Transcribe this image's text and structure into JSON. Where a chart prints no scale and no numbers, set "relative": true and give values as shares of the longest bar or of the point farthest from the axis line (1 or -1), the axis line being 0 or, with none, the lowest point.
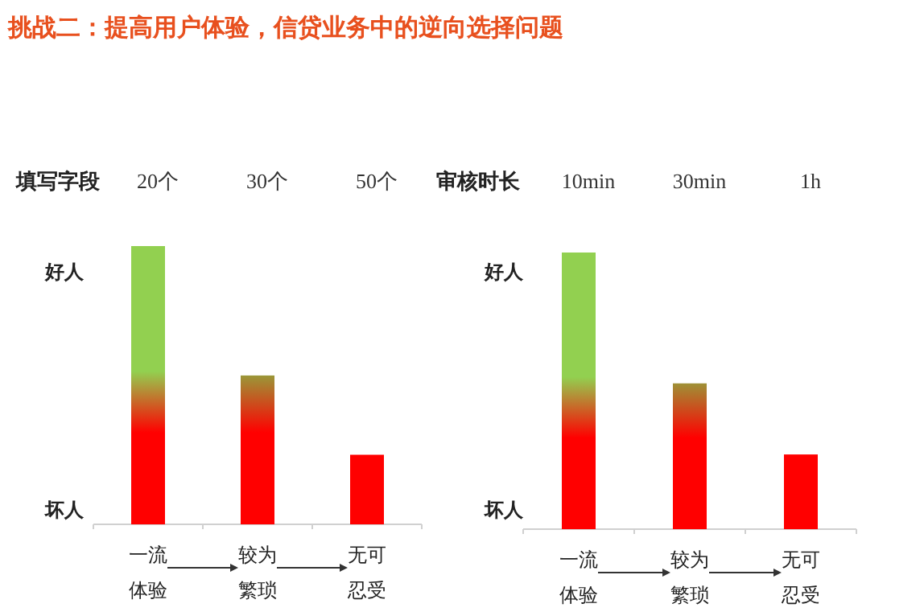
{
  "chart_data": [
    {
      "type": "bar",
      "title": "挑战二：提高用户体验，信贷业务中的逆向选择问题",
      "relative": true,
      "categories": [
        "一流体验",
        "较为繁琐",
        "无可忍受"
      ],
      "series": [
        {
          "color": "#ff0000",
          "colors": [
            "#92d050",
            "#93a23c",
            "#ff0000"
          ],
          "values": [
            1,
            0.535,
            0.25
          ]
        }
      ],
      "annotations": [
        "填写字段",
        "20个",
        "30个",
        "50个",
        "好人",
        "坏人"
      ]
    },
    {
      "type": "bar",
      "relative": true,
      "categories": [
        "一流体验",
        "较为繁琐",
        "无可忍受"
      ],
      "series": [
        {
          "color": "#ff0000",
          "colors": [
            "#92d050",
            "#93a23c",
            "#ff0000"
          ],
          "values": [
            1,
            0.527,
            0.27
          ]
        }
      ],
      "annotations": [
        "审核时长",
        "10min",
        "30min",
        "1h",
        "好人",
        "坏人"
      ]
    }
  ]
}
